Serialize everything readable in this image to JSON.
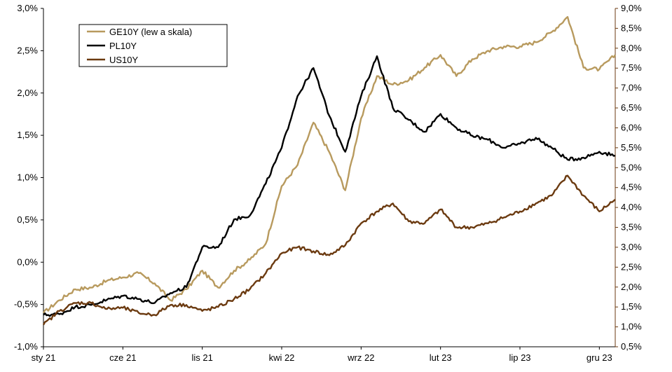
{
  "chart_data": {
    "type": "line",
    "title": "",
    "x_ticks": [
      "sty 21",
      "cze 21",
      "lis 21",
      "kwi 22",
      "wrz 22",
      "lut 23",
      "lip 23",
      "gru 23"
    ],
    "y_left": {
      "ticks": [
        "-1,0%",
        "-0,5%",
        "0,0%",
        "0,5%",
        "1,0%",
        "1,5%",
        "2,0%",
        "2,5%",
        "3,0%"
      ],
      "min": -1.0,
      "max": 3.0
    },
    "y_right": {
      "ticks": [
        "0,5%",
        "1,0%",
        "1,5%",
        "2,0%",
        "2,5%",
        "3,0%",
        "3,5%",
        "4,0%",
        "4,5%",
        "5,0%",
        "5,5%",
        "6,0%",
        "6,5%",
        "7,0%",
        "7,5%",
        "8,0%",
        "8,5%",
        "9,0%"
      ],
      "min": 0.5,
      "max": 9.0
    },
    "time_axis": {
      "start_month": 0,
      "end_month": 36
    },
    "legend_position": "top-left",
    "series": [
      {
        "name": "GE10Y (lew a skala)",
        "axis": "left",
        "color": "#B89A5E",
        "points": [
          [
            0,
            -0.6
          ],
          [
            1,
            -0.45
          ],
          [
            2,
            -0.32
          ],
          [
            3,
            -0.3
          ],
          [
            4,
            -0.22
          ],
          [
            5,
            -0.18
          ],
          [
            6,
            -0.13
          ],
          [
            7,
            -0.25
          ],
          [
            8,
            -0.45
          ],
          [
            9,
            -0.32
          ],
          [
            10,
            -0.1
          ],
          [
            11,
            -0.3
          ],
          [
            12,
            -0.1
          ],
          [
            13,
            0.03
          ],
          [
            14,
            0.22
          ],
          [
            15,
            0.9
          ],
          [
            16,
            1.15
          ],
          [
            17,
            1.65
          ],
          [
            18,
            1.3
          ],
          [
            19,
            0.85
          ],
          [
            20,
            1.7
          ],
          [
            21,
            2.2
          ],
          [
            22,
            2.1
          ],
          [
            23,
            2.15
          ],
          [
            24,
            2.3
          ],
          [
            25,
            2.45
          ],
          [
            26,
            2.2
          ],
          [
            27,
            2.4
          ],
          [
            28,
            2.5
          ],
          [
            29,
            2.55
          ],
          [
            30,
            2.55
          ],
          [
            31,
            2.6
          ],
          [
            32,
            2.72
          ],
          [
            33,
            2.9
          ],
          [
            34,
            2.3
          ],
          [
            35,
            2.28
          ],
          [
            36,
            2.45
          ]
        ]
      },
      {
        "name": "PL10Y",
        "axis": "right",
        "color": "#000000",
        "points": [
          [
            0,
            1.3
          ],
          [
            1,
            1.32
          ],
          [
            2,
            1.5
          ],
          [
            3,
            1.55
          ],
          [
            4,
            1.68
          ],
          [
            5,
            1.78
          ],
          [
            6,
            1.7
          ],
          [
            7,
            1.6
          ],
          [
            8,
            1.85
          ],
          [
            9,
            2.0
          ],
          [
            10,
            3.0
          ],
          [
            11,
            3.0
          ],
          [
            12,
            3.7
          ],
          [
            13,
            3.8
          ],
          [
            14,
            4.6
          ],
          [
            15,
            5.5
          ],
          [
            16,
            6.8
          ],
          [
            17,
            7.5
          ],
          [
            18,
            6.3
          ],
          [
            19,
            5.4
          ],
          [
            20,
            6.8
          ],
          [
            21,
            7.8
          ],
          [
            22,
            6.5
          ],
          [
            23,
            6.2
          ],
          [
            24,
            5.9
          ],
          [
            25,
            6.35
          ],
          [
            26,
            6.0
          ],
          [
            27,
            5.8
          ],
          [
            28,
            5.7
          ],
          [
            29,
            5.5
          ],
          [
            30,
            5.6
          ],
          [
            31,
            5.75
          ],
          [
            32,
            5.5
          ],
          [
            33,
            5.2
          ],
          [
            34,
            5.25
          ],
          [
            35,
            5.4
          ],
          [
            36,
            5.3
          ]
        ]
      },
      {
        "name": "US10Y",
        "axis": "right",
        "color": "#6B3A10",
        "points": [
          [
            0,
            1.05
          ],
          [
            1,
            1.4
          ],
          [
            2,
            1.6
          ],
          [
            3,
            1.6
          ],
          [
            4,
            1.45
          ],
          [
            5,
            1.48
          ],
          [
            6,
            1.35
          ],
          [
            7,
            1.3
          ],
          [
            8,
            1.55
          ],
          [
            9,
            1.55
          ],
          [
            10,
            1.4
          ],
          [
            11,
            1.5
          ],
          [
            12,
            1.7
          ],
          [
            13,
            1.95
          ],
          [
            14,
            2.35
          ],
          [
            15,
            2.85
          ],
          [
            16,
            3.0
          ],
          [
            17,
            2.9
          ],
          [
            18,
            2.8
          ],
          [
            19,
            3.05
          ],
          [
            20,
            3.6
          ],
          [
            21,
            3.9
          ],
          [
            22,
            4.1
          ],
          [
            23,
            3.65
          ],
          [
            24,
            3.6
          ],
          [
            25,
            3.95
          ],
          [
            26,
            3.5
          ],
          [
            27,
            3.5
          ],
          [
            28,
            3.6
          ],
          [
            29,
            3.75
          ],
          [
            30,
            3.9
          ],
          [
            31,
            4.1
          ],
          [
            32,
            4.3
          ],
          [
            33,
            4.8
          ],
          [
            34,
            4.3
          ],
          [
            35,
            3.9
          ],
          [
            36,
            4.2
          ]
        ]
      }
    ]
  }
}
